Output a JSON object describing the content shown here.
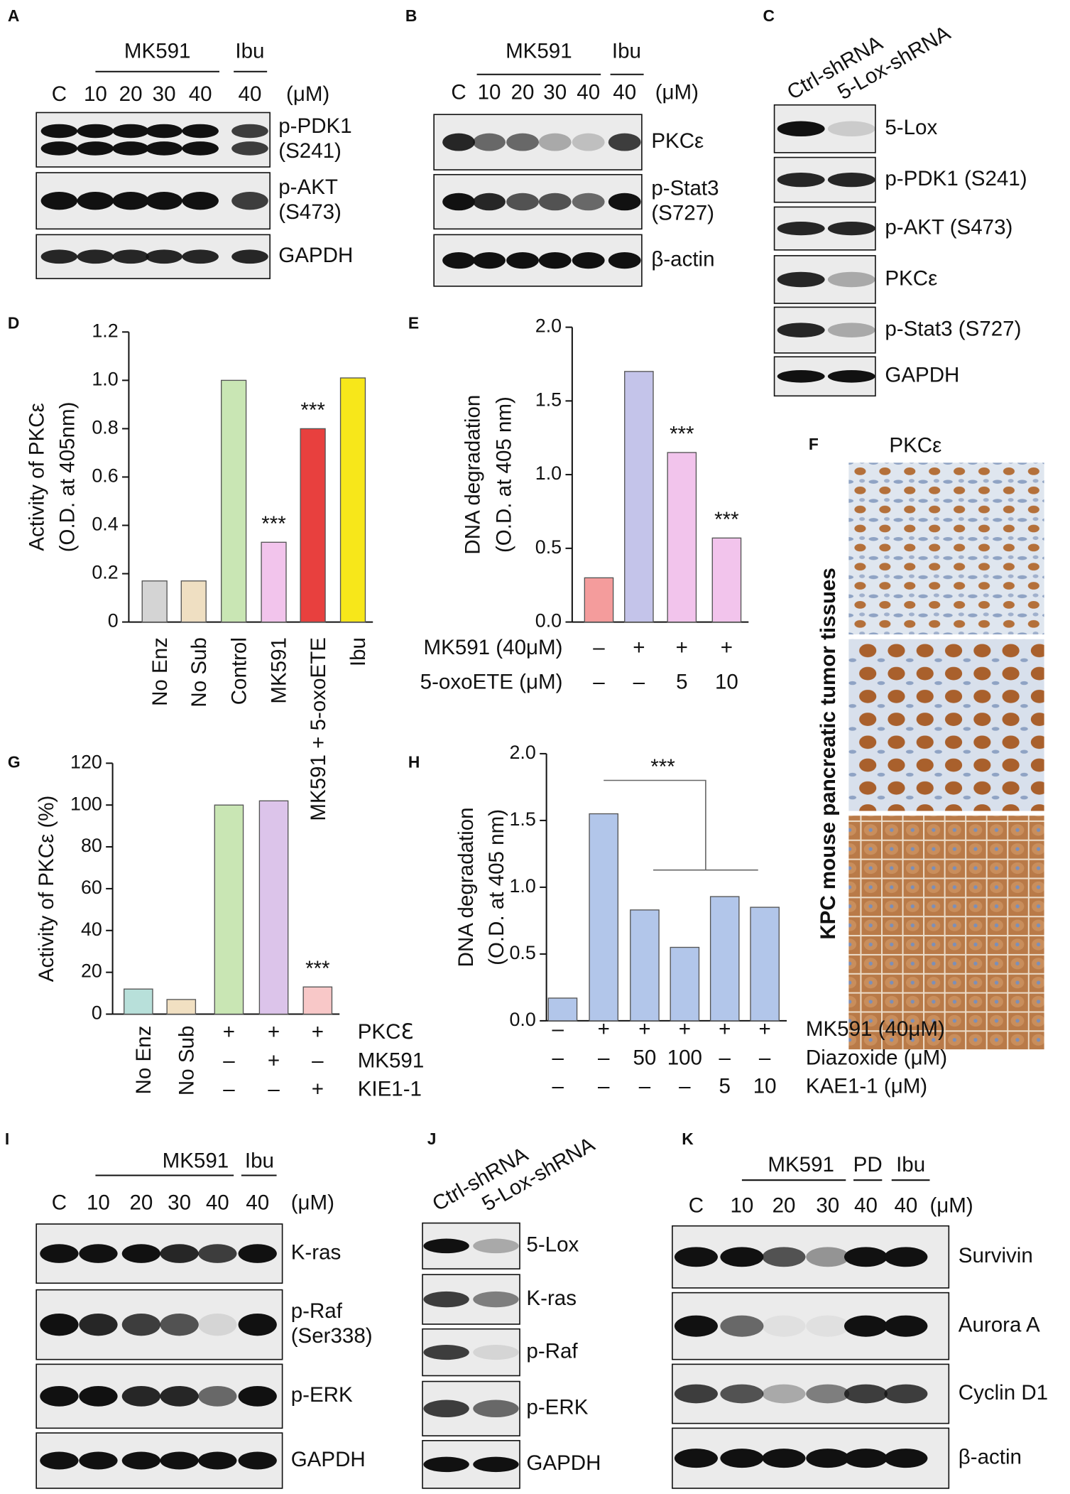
{
  "blots": [
    {
      "label": "A",
      "groups": [
        "MK591",
        "Ibu"
      ],
      "lanes": [
        "C",
        "10",
        "20",
        "30",
        "40",
        "40"
      ],
      "unit": "(μM)",
      "rows": [
        [
          "p-PDK1",
          "(S241)"
        ],
        [
          "p-AKT",
          "(S473)"
        ],
        [
          "GAPDH"
        ]
      ]
    },
    {
      "label": "B",
      "groups": [
        "MK591",
        "Ibu"
      ],
      "lanes": [
        "C",
        "10",
        "20",
        "30",
        "40",
        "40"
      ],
      "unit": "(μM)",
      "rows": [
        [
          "PKCε"
        ],
        [
          "p-Stat3",
          "(S727)"
        ],
        [
          "β-actin"
        ]
      ]
    },
    {
      "label": "C",
      "lanes": [
        "Ctrl-shRNA",
        "5-Lox-shRNA"
      ],
      "rows": [
        [
          "5-Lox"
        ],
        [
          "p-PDK1 (S241)"
        ],
        [
          "p-AKT (S473)"
        ],
        [
          "PKCε"
        ],
        [
          "p-Stat3 (S727)"
        ],
        [
          "GAPDH"
        ]
      ]
    },
    {
      "label": "I",
      "groups": [
        "MK591",
        "Ibu"
      ],
      "lanes": [
        "C",
        "10",
        "20",
        "30",
        "40",
        "40"
      ],
      "unit": "(μM)",
      "rows": [
        [
          "K-ras"
        ],
        [
          "p-Raf",
          "(Ser338)"
        ],
        [
          "p-ERK"
        ],
        [
          "GAPDH"
        ]
      ]
    },
    {
      "label": "J",
      "lanes": [
        "Ctrl-shRNA",
        "5-Lox-shRNA"
      ],
      "rows": [
        [
          "5-Lox"
        ],
        [
          "K-ras"
        ],
        [
          "p-Raf"
        ],
        [
          "p-ERK"
        ],
        [
          "GAPDH"
        ]
      ]
    },
    {
      "label": "K",
      "groups": [
        "MK591",
        "PD",
        "Ibu"
      ],
      "lanes": [
        "C",
        "10",
        "20",
        "30",
        "40",
        "40"
      ],
      "unit": "(μM)",
      "rows": [
        [
          "Survivin"
        ],
        [
          "Aurora A"
        ],
        [
          "Cyclin D1"
        ],
        [
          "β-actin"
        ]
      ]
    }
  ],
  "image_panel": {
    "label": "F",
    "title": "PKCε",
    "side_label": "KPC mouse pancreatic tumor tissues"
  },
  "chart_data": [
    {
      "type": "bar",
      "label": "D",
      "y_label": [
        "Activity of PKCε",
        "(O.D. at 405nm)"
      ],
      "categories": [
        "No Enz",
        "No Sub",
        "Control",
        "MK591",
        "MK591 + 5-oxoETE",
        "Ibu"
      ],
      "values": [
        0.17,
        0.17,
        1.0,
        0.33,
        0.8,
        1.01
      ],
      "colors": [
        "#d4d4d4",
        "#efdfc2",
        "#c9e6b4",
        "#f2c4ec",
        "#e8403e",
        "#f7e71a"
      ],
      "significance": [
        null,
        null,
        null,
        "***",
        "***",
        null
      ],
      "ylim": [
        0,
        1.2
      ],
      "yticks": [
        0,
        0.2,
        0.4,
        0.6,
        0.8,
        {
          "value": 1,
          "label": "1.0"
        },
        1.2
      ]
    },
    {
      "type": "bar",
      "label": "E",
      "y_label": [
        "DNA degradation",
        "(O.D. at 405 nm)"
      ],
      "categories": [
        null,
        null,
        null,
        null
      ],
      "values": [
        0.3,
        1.7,
        1.15,
        0.57
      ],
      "colors": [
        "#f49c9c",
        "#c4c4ea",
        "#f2c4ec",
        "#f2c4ec"
      ],
      "significance": [
        null,
        null,
        "***",
        "***"
      ],
      "conditions": [
        {
          "name": "MK591 (40μM)",
          "values": [
            "–",
            "+",
            "+",
            "+"
          ]
        },
        {
          "name": "5-oxoETE (μM)",
          "values": [
            "–",
            "–",
            "5",
            "10"
          ]
        }
      ],
      "ylim": [
        0,
        2
      ],
      "yticks": [
        {
          "value": 0,
          "label": "0.0"
        },
        0.5,
        {
          "value": 1,
          "label": "1.0"
        },
        1.5,
        {
          "value": 2,
          "label": "2.0"
        }
      ]
    },
    {
      "type": "bar",
      "label": "G",
      "y_label": [
        "Activity of PKCε (%)"
      ],
      "categories": [
        "No Enz",
        "No Sub",
        null,
        null,
        null
      ],
      "values": [
        12,
        7,
        100,
        102,
        13
      ],
      "colors": [
        "#b8e0da",
        "#f1e0c2",
        "#c9e6b4",
        "#dcc4ea",
        "#f8c8c8"
      ],
      "significance": [
        null,
        null,
        null,
        null,
        "***"
      ],
      "conditions": [
        {
          "name": "PKCℇ",
          "values": [
            null,
            null,
            "+",
            "+",
            "+"
          ]
        },
        {
          "name": "MK591",
          "values": [
            null,
            null,
            "–",
            "+",
            "–"
          ]
        },
        {
          "name": "KIE1-1",
          "values": [
            null,
            null,
            "–",
            "–",
            "+"
          ]
        }
      ],
      "ylim": [
        0,
        120
      ],
      "yticks": [
        0,
        20,
        40,
        60,
        80,
        100,
        120
      ]
    },
    {
      "type": "bar",
      "label": "H",
      "y_label": [
        "DNA degradation",
        "(O.D. at 405 nm)"
      ],
      "categories": [
        null,
        null,
        null,
        null,
        null,
        null
      ],
      "values": [
        0.17,
        1.55,
        0.83,
        0.55,
        0.93,
        0.85
      ],
      "colors": [
        "#b2c6ea",
        "#b2c6ea",
        "#b2c6ea",
        "#b2c6ea",
        "#b2c6ea",
        "#b2c6ea"
      ],
      "annotation": "***",
      "conditions": [
        {
          "name": "MK591 (40μM)",
          "values": [
            "–",
            "+",
            "+",
            "+",
            "+",
            "+"
          ]
        },
        {
          "name": "Diazoxide (μM)",
          "values": [
            "–",
            "–",
            "50",
            "100",
            "–",
            "–"
          ]
        },
        {
          "name": "KAE1-1 (μM)",
          "values": [
            "–",
            "–",
            "–",
            "–",
            "5",
            "10"
          ]
        }
      ],
      "ylim": [
        0,
        2
      ],
      "yticks": [
        {
          "value": 0,
          "label": "0.0"
        },
        0.5,
        {
          "value": 1,
          "label": "1.0"
        },
        1.5,
        {
          "value": 2,
          "label": "2.0"
        }
      ]
    }
  ]
}
